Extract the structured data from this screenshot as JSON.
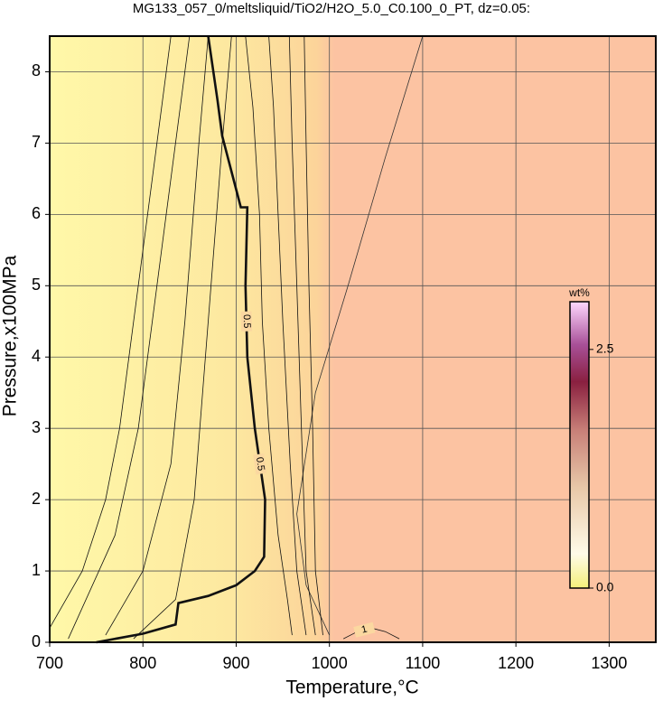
{
  "chart_data": {
    "type": "contour",
    "title": "MG133_057_0/meltsliquid/TiO2/H2O_5.0_C0.100_0_PT, dz=0.05:",
    "x_label": "Temperature,°C",
    "y_label": "Pressure,x100MPa",
    "xlim": [
      700,
      1350
    ],
    "ylim": [
      0,
      8.5
    ],
    "xticks": [
      700,
      800,
      900,
      1000,
      1100,
      1200,
      1300
    ],
    "yticks": [
      0,
      1,
      2,
      3,
      4,
      5,
      6,
      7,
      8
    ],
    "grid": true,
    "contours": [
      {
        "level": 0.5,
        "bold": true,
        "x": [
          750,
          800,
          835,
          838,
          870,
          900,
          920,
          930,
          931,
          920,
          912,
          910,
          912,
          905,
          895,
          885,
          880,
          870
        ],
        "y": [
          0,
          0.12,
          0.25,
          0.55,
          0.65,
          0.8,
          1.0,
          1.2,
          2,
          3,
          4,
          5,
          6.1,
          6.1,
          6.6,
          7.1,
          7.6,
          8.5
        ]
      },
      {
        "level": 0.1,
        "x": [
          700,
          735,
          760,
          775,
          790,
          805,
          820,
          830
        ],
        "y": [
          0.2,
          1.0,
          2.0,
          3.0,
          4.5,
          6,
          7.5,
          8.5
        ]
      },
      {
        "level": 0.2,
        "x": [
          720,
          770,
          795,
          810,
          825,
          840,
          850
        ],
        "y": [
          0.05,
          1.5,
          3,
          4.5,
          6,
          7.5,
          8.5
        ]
      },
      {
        "level": 0.3,
        "x": [
          760,
          800,
          830,
          845,
          860,
          870
        ],
        "y": [
          0.1,
          1,
          2.5,
          4.5,
          7,
          8.5
        ]
      },
      {
        "level": 0.4,
        "x": [
          790,
          835,
          855,
          870,
          885,
          895
        ],
        "y": [
          0.05,
          0.6,
          2,
          4.5,
          7,
          8.5
        ]
      },
      {
        "level": 0.6,
        "x": [
          960,
          955,
          945,
          935,
          928,
          925,
          918,
          910
        ],
        "y": [
          0.1,
          0.6,
          1.5,
          3,
          4.5,
          6,
          7.5,
          8.5
        ]
      },
      {
        "level": 0.7,
        "x": [
          975,
          965,
          958,
          950,
          945,
          940,
          935
        ],
        "y": [
          0.1,
          1,
          2.5,
          4.5,
          6,
          7.5,
          8.5
        ]
      },
      {
        "level": 0.8,
        "x": [
          985,
          975,
          970,
          965,
          960,
          957
        ],
        "y": [
          0.1,
          1,
          3,
          5,
          7,
          8.5
        ]
      },
      {
        "level": 0.9,
        "x": [
          993,
          985,
          982,
          978,
          975,
          973
        ],
        "y": [
          0.1,
          1,
          3,
          5,
          7,
          8.5
        ]
      },
      {
        "level": 1,
        "x": [
          1015,
          1030,
          1045,
          1060,
          1075
        ],
        "y": [
          0.05,
          0.15,
          0.2,
          0.15,
          0.05
        ]
      }
    ],
    "phase_boundary": {
      "x": [
        1000,
        975,
        965,
        985,
        1020,
        1060,
        1100
      ],
      "y": [
        0.1,
        0.8,
        1.8,
        3.5,
        5,
        6.8,
        8.5
      ]
    },
    "colorbar": {
      "label": "wt%",
      "lim": [
        0,
        3
      ],
      "ticks": [
        {
          "value": 0,
          "label": "0.0"
        },
        2.5
      ]
    }
  }
}
